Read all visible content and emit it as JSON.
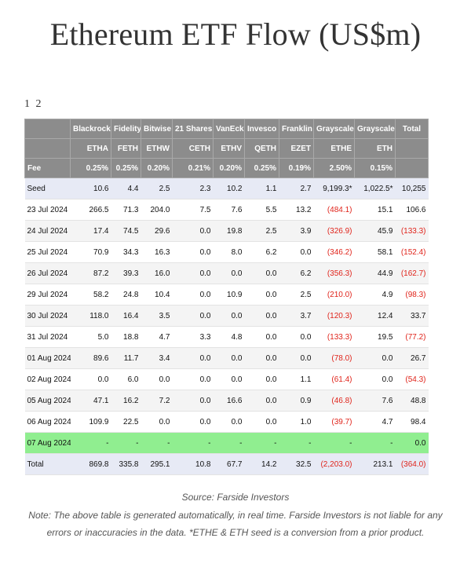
{
  "title": "Ethereum ETF Flow (US$m)",
  "pager": [
    "1",
    "2"
  ],
  "table": {
    "issuers": [
      "",
      "Blackrock",
      "Fidelity",
      "Bitwise",
      "21 Shares",
      "VanEck",
      "Invesco",
      "Franklin",
      "Grayscale",
      "Grayscale",
      "Total"
    ],
    "tickers": [
      "",
      "ETHA",
      "FETH",
      "ETHW",
      "CETH",
      "ETHV",
      "QETH",
      "EZET",
      "ETHE",
      "ETH",
      ""
    ],
    "fees": [
      "Fee",
      "0.25%",
      "0.25%",
      "0.20%",
      "0.21%",
      "0.20%",
      "0.25%",
      "0.19%",
      "2.50%",
      "0.15%",
      ""
    ],
    "rows": [
      [
        "Seed",
        "10.6",
        "4.4",
        "2.5",
        "2.3",
        "10.2",
        "1.1",
        "2.7",
        "9,199.3*",
        "1,022.5*",
        "10,255"
      ],
      [
        "23 Jul 2024",
        "266.5",
        "71.3",
        "204.0",
        "7.5",
        "7.6",
        "5.5",
        "13.2",
        "(484.1)",
        "15.1",
        "106.6"
      ],
      [
        "24 Jul 2024",
        "17.4",
        "74.5",
        "29.6",
        "0.0",
        "19.8",
        "2.5",
        "3.9",
        "(326.9)",
        "45.9",
        "(133.3)"
      ],
      [
        "25 Jul 2024",
        "70.9",
        "34.3",
        "16.3",
        "0.0",
        "8.0",
        "6.2",
        "0.0",
        "(346.2)",
        "58.1",
        "(152.4)"
      ],
      [
        "26 Jul 2024",
        "87.2",
        "39.3",
        "16.0",
        "0.0",
        "0.0",
        "0.0",
        "6.2",
        "(356.3)",
        "44.9",
        "(162.7)"
      ],
      [
        "29 Jul 2024",
        "58.2",
        "24.8",
        "10.4",
        "0.0",
        "10.9",
        "0.0",
        "2.5",
        "(210.0)",
        "4.9",
        "(98.3)"
      ],
      [
        "30 Jul 2024",
        "118.0",
        "16.4",
        "3.5",
        "0.0",
        "0.0",
        "0.0",
        "3.7",
        "(120.3)",
        "12.4",
        "33.7"
      ],
      [
        "31 Jul 2024",
        "5.0",
        "18.8",
        "4.7",
        "3.3",
        "4.8",
        "0.0",
        "0.0",
        "(133.3)",
        "19.5",
        "(77.2)"
      ],
      [
        "01 Aug 2024",
        "89.6",
        "11.7",
        "3.4",
        "0.0",
        "0.0",
        "0.0",
        "0.0",
        "(78.0)",
        "0.0",
        "26.7"
      ],
      [
        "02 Aug 2024",
        "0.0",
        "6.0",
        "0.0",
        "0.0",
        "0.0",
        "0.0",
        "1.1",
        "(61.4)",
        "0.0",
        "(54.3)"
      ],
      [
        "05 Aug 2024",
        "47.1",
        "16.2",
        "7.2",
        "0.0",
        "16.6",
        "0.0",
        "0.9",
        "(46.8)",
        "7.6",
        "48.8"
      ],
      [
        "06 Aug 2024",
        "109.9",
        "22.5",
        "0.0",
        "0.0",
        "0.0",
        "0.0",
        "1.0",
        "(39.7)",
        "4.7",
        "98.4"
      ],
      [
        "07 Aug 2024",
        "-",
        "-",
        "-",
        "-",
        "-",
        "-",
        "-",
        "-",
        "-",
        "0.0"
      ],
      [
        "Total",
        "869.8",
        "335.8",
        "295.1",
        "10.8",
        "67.7",
        "14.2",
        "32.5",
        "(2,203.0)",
        "213.1",
        "(364.0)"
      ]
    ],
    "highlight_row": "07 Aug 2024",
    "colors": {
      "header_bg": "#8c8c8c",
      "seed_total_bg": "#e7eaf5",
      "highlight_bg": "#90ee90",
      "negative_text": "#e0241b"
    }
  },
  "source": "Source: Farside Investors",
  "note": "Note: The above table is generated automatically, in real time. Farside Investors is not liable for any errors or inaccuracies in the data. *ETHE & ETH seed is a conversion from a prior product."
}
